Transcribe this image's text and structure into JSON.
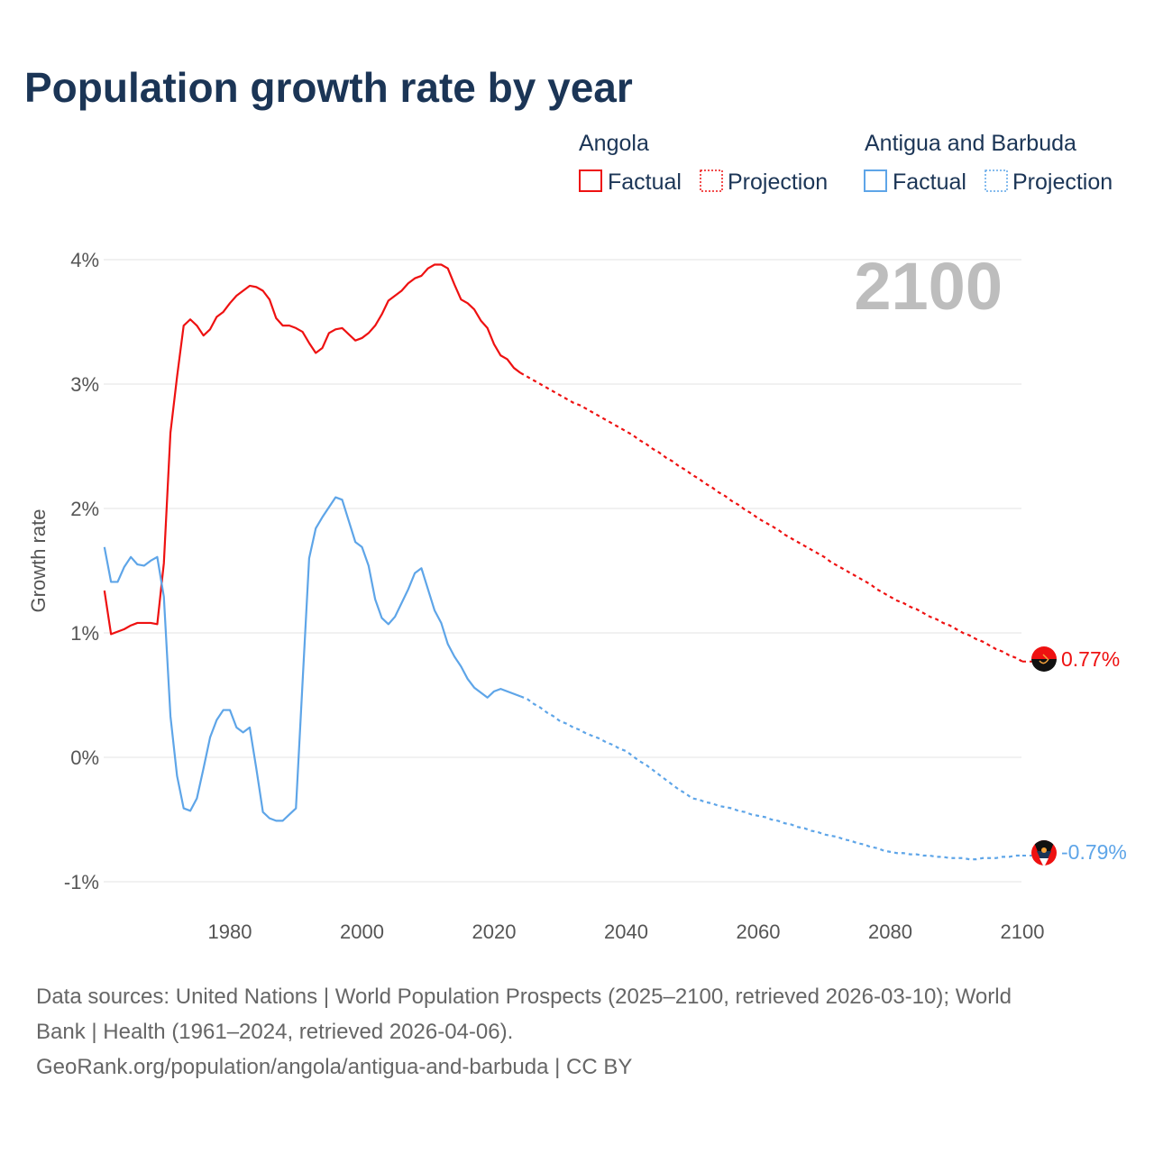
{
  "chart_data": {
    "type": "line",
    "title": "Population growth rate by year",
    "ylabel": "Growth rate",
    "xlabel": "",
    "xlim": [
      1961,
      2100
    ],
    "ylim": [
      -1,
      4
    ],
    "x_ticks": [
      "1980",
      "2000",
      "2020",
      "2040",
      "2060",
      "2080",
      "2100"
    ],
    "x_tick_values": [
      1980,
      2000,
      2020,
      2040,
      2060,
      2080,
      2100
    ],
    "y_ticks": [
      "4%",
      "3%",
      "2%",
      "1%",
      "0%",
      "-1%"
    ],
    "y_tick_values": [
      4,
      3,
      2,
      1,
      0,
      -1
    ],
    "grid": true,
    "legend_position": "top-right",
    "current_year_label": "2100",
    "colors": {
      "angola": "#ee1111",
      "antigua": "#5ea5e8"
    },
    "series": [
      {
        "name": "Angola",
        "factual_label": "Factual",
        "projection_label": "Projection",
        "end_label": "0.77%",
        "factual": {
          "start_year": 1961,
          "values": [
            1.34,
            0.99,
            1.01,
            1.03,
            1.06,
            1.08,
            1.08,
            1.08,
            1.07,
            1.56,
            2.61,
            3.06,
            3.47,
            3.52,
            3.47,
            3.39,
            3.44,
            3.54,
            3.58,
            3.65,
            3.71,
            3.75,
            3.79,
            3.78,
            3.75,
            3.68,
            3.53,
            3.47,
            3.47,
            3.45,
            3.42,
            3.33,
            3.25,
            3.29,
            3.41,
            3.44,
            3.45,
            3.4,
            3.35,
            3.37,
            3.41,
            3.47,
            3.56,
            3.67,
            3.71,
            3.75,
            3.81,
            3.85,
            3.87,
            3.93,
            3.96,
            3.96,
            3.93,
            3.8,
            3.68,
            3.65,
            3.6,
            3.51,
            3.45,
            3.32,
            3.23,
            3.2,
            3.13,
            3.09
          ]
        },
        "projection": {
          "start_year": 2025,
          "values": [
            3.06,
            3.03,
            3.0,
            2.97,
            2.94,
            2.91,
            2.88,
            2.85,
            2.83,
            2.8,
            2.77,
            2.74,
            2.71,
            2.68,
            2.65,
            2.62,
            2.59,
            2.55,
            2.52,
            2.48,
            2.45,
            2.41,
            2.38,
            2.34,
            2.31,
            2.27,
            2.24,
            2.2,
            2.17,
            2.13,
            2.1,
            2.06,
            2.03,
            1.99,
            1.96,
            1.92,
            1.89,
            1.86,
            1.83,
            1.79,
            1.76,
            1.73,
            1.7,
            1.67,
            1.64,
            1.61,
            1.57,
            1.54,
            1.51,
            1.48,
            1.45,
            1.42,
            1.39,
            1.35,
            1.32,
            1.29,
            1.26,
            1.24,
            1.21,
            1.19,
            1.16,
            1.13,
            1.11,
            1.08,
            1.06,
            1.03,
            1.0,
            0.98,
            0.95,
            0.93,
            0.9,
            0.87,
            0.85,
            0.82,
            0.8,
            0.77
          ]
        }
      },
      {
        "name": "Antigua and Barbuda",
        "factual_label": "Factual",
        "projection_label": "Projection",
        "end_label": "-0.79%",
        "factual": {
          "start_year": 1961,
          "values": [
            1.69,
            1.41,
            1.41,
            1.53,
            1.61,
            1.55,
            1.54,
            1.58,
            1.61,
            1.29,
            0.33,
            -0.15,
            -0.41,
            -0.43,
            -0.33,
            -0.09,
            0.16,
            0.3,
            0.38,
            0.38,
            0.24,
            0.2,
            0.24,
            -0.09,
            -0.44,
            -0.49,
            -0.51,
            -0.51,
            -0.46,
            -0.41,
            0.6,
            1.6,
            1.84,
            1.93,
            2.01,
            2.09,
            2.07,
            1.9,
            1.73,
            1.69,
            1.54,
            1.27,
            1.12,
            1.07,
            1.13,
            1.24,
            1.35,
            1.48,
            1.52,
            1.35,
            1.18,
            1.08,
            0.91,
            0.81,
            0.73,
            0.63,
            0.56,
            0.52,
            0.48,
            0.53,
            0.55,
            0.53,
            0.51,
            0.49
          ]
        },
        "projection": {
          "start_year": 2025,
          "values": [
            0.47,
            0.43,
            0.4,
            0.36,
            0.33,
            0.29,
            0.27,
            0.24,
            0.22,
            0.19,
            0.17,
            0.15,
            0.12,
            0.1,
            0.07,
            0.05,
            0.01,
            -0.03,
            -0.06,
            -0.1,
            -0.14,
            -0.18,
            -0.22,
            -0.26,
            -0.29,
            -0.33,
            -0.34,
            -0.36,
            -0.37,
            -0.39,
            -0.4,
            -0.41,
            -0.43,
            -0.44,
            -0.46,
            -0.47,
            -0.48,
            -0.5,
            -0.51,
            -0.53,
            -0.54,
            -0.56,
            -0.57,
            -0.59,
            -0.6,
            -0.62,
            -0.63,
            -0.64,
            -0.66,
            -0.67,
            -0.69,
            -0.7,
            -0.72,
            -0.73,
            -0.75,
            -0.76,
            -0.77,
            -0.77,
            -0.78,
            -0.78,
            -0.79,
            -0.79,
            -0.8,
            -0.8,
            -0.81,
            -0.81,
            -0.81,
            -0.82,
            -0.82,
            -0.81,
            -0.81,
            -0.81,
            -0.8,
            -0.8,
            -0.79,
            -0.79
          ]
        }
      }
    ]
  },
  "footer": {
    "line1": "Data sources: United Nations | World Population Prospects (2025–2100, retrieved 2026-03-10); World",
    "line2": "Bank | Health (1961–2024, retrieved 2026-04-06).",
    "line3": "GeoRank.org/population/angola/antigua-and-barbuda | CC BY"
  }
}
